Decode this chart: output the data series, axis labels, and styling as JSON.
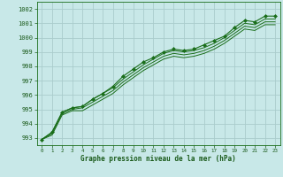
{
  "background_color": "#c8e8e8",
  "grid_color": "#aacccc",
  "line_color": "#1a6e1a",
  "marker_color": "#1a6e1a",
  "text_color": "#1a5a1a",
  "xlabel": "Graphe pression niveau de la mer (hPa)",
  "xlim": [
    -0.5,
    23.5
  ],
  "ylim": [
    992.5,
    1002.5
  ],
  "yticks": [
    993,
    994,
    995,
    996,
    997,
    998,
    999,
    1000,
    1001,
    1002
  ],
  "xticks": [
    0,
    1,
    2,
    3,
    4,
    5,
    6,
    7,
    8,
    9,
    10,
    11,
    12,
    13,
    14,
    15,
    16,
    17,
    18,
    19,
    20,
    21,
    22,
    23
  ],
  "series": [
    [
      992.9,
      993.4,
      994.8,
      995.1,
      995.2,
      995.7,
      996.1,
      996.6,
      997.3,
      997.8,
      998.3,
      998.6,
      999.0,
      999.2,
      999.1,
      999.2,
      999.5,
      999.8,
      1000.1,
      1000.7,
      1001.2,
      1001.1,
      1001.5,
      1001.5
    ],
    [
      992.9,
      993.4,
      994.8,
      995.1,
      995.2,
      995.7,
      996.1,
      996.5,
      997.1,
      997.6,
      998.1,
      998.5,
      998.9,
      999.1,
      999.0,
      999.1,
      999.3,
      999.6,
      1000.0,
      1000.5,
      1001.0,
      1000.9,
      1001.3,
      1001.3
    ],
    [
      992.9,
      993.3,
      994.7,
      995.0,
      995.1,
      995.5,
      995.9,
      996.3,
      996.9,
      997.4,
      997.9,
      998.3,
      998.7,
      998.9,
      998.8,
      998.9,
      999.1,
      999.4,
      999.8,
      1000.3,
      1000.8,
      1000.7,
      1001.1,
      1001.1
    ],
    [
      992.9,
      993.2,
      994.6,
      994.9,
      994.9,
      995.3,
      995.7,
      996.1,
      996.7,
      997.2,
      997.7,
      998.1,
      998.5,
      998.7,
      998.6,
      998.7,
      998.9,
      999.2,
      999.6,
      1000.1,
      1000.6,
      1000.5,
      1000.9,
      1000.9
    ]
  ],
  "marker_series": 0,
  "figsize": [
    3.2,
    2.0
  ],
  "dpi": 100
}
